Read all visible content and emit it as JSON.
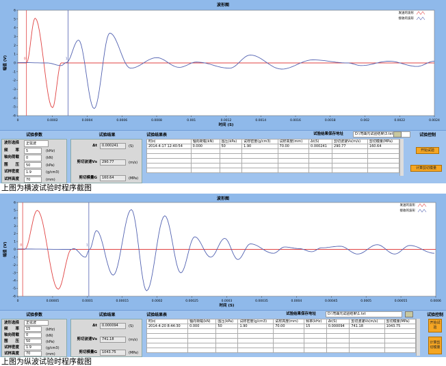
{
  "captions": [
    "上图为横波试验时程序截图",
    "上图为纵波试验时程序截图"
  ],
  "colors": {
    "sent": "#e04040",
    "received": "#5060b0",
    "panel": "#9fc3ee",
    "button": "#f5a623"
  },
  "chart_data": [
    {
      "type": "line",
      "title": "波形图",
      "xlabel": "时间 (S)",
      "ylabel": "幅值 (V)",
      "xlim": [
        0,
        0.0024
      ],
      "ylim": [
        -6,
        6
      ],
      "xticks": [
        0,
        0.0002,
        0.0004,
        0.0006,
        0.0008,
        0.001,
        0.0012,
        0.0014,
        0.0016,
        0.0018,
        0.002,
        0.0022,
        0.0024
      ],
      "xtick_labels": [
        "0",
        "0.0002",
        "0.0004",
        "0.0006",
        "0.0008",
        "0.001",
        "0.0012",
        "0.0014",
        "0.0016",
        "0.0018",
        "0.002",
        "0.0022",
        "0.0024"
      ],
      "yticks": [
        -6,
        -5,
        -4,
        -3,
        -2,
        -1,
        0,
        1,
        2,
        3,
        4,
        5,
        6
      ],
      "legend": [
        "发送的波形",
        "接收的波形"
      ],
      "legend_position": "top-right",
      "grid": false,
      "cursors": [
        {
          "label": "0",
          "x": 5e-05,
          "color": "#e04040"
        },
        {
          "label": "1",
          "x": 0.00029,
          "color": "#5060b0"
        }
      ],
      "series": [
        {
          "name": "发送的波形",
          "points": [
            [
              0,
              0
            ],
            [
              5e-05,
              0
            ],
            [
              0.0001,
              5.1
            ],
            [
              0.0002,
              -5.1
            ],
            [
              0.00025,
              0
            ],
            [
              0.0024,
              0
            ]
          ]
        },
        {
          "name": "接收的波形",
          "points": [
            [
              0,
              0.05
            ],
            [
              0.00017,
              0
            ],
            [
              0.00025,
              -0.3
            ],
            [
              0.00028,
              0.05
            ],
            [
              0.00035,
              2.6
            ],
            [
              0.00044,
              -5.2
            ],
            [
              0.00053,
              3.4
            ],
            [
              0.00065,
              -0.6
            ],
            [
              0.0008,
              0.6
            ],
            [
              0.00093,
              -0.5
            ],
            [
              0.00103,
              0.1
            ],
            [
              0.00122,
              -0.6
            ],
            [
              0.00134,
              0.9
            ],
            [
              0.00152,
              -0.7
            ],
            [
              0.0017,
              0.35
            ],
            [
              0.0019,
              0
            ],
            [
              0.00198,
              -0.3
            ],
            [
              0.00214,
              0.2
            ],
            [
              0.0023,
              -0.4
            ],
            [
              0.0024,
              0.2
            ]
          ]
        }
      ]
    },
    {
      "type": "line",
      "title": "波形图",
      "xlabel": "时间 (S)",
      "ylabel": "幅值 (V)",
      "xlim": [
        0,
        0.0006
      ],
      "ylim": [
        -6,
        6
      ],
      "xticks": [
        0,
        5e-05,
        0.0001,
        0.00015,
        0.0002,
        0.00025,
        0.0003,
        0.00035,
        0.0004,
        0.00045,
        0.0005,
        0.00055,
        0.0006
      ],
      "xtick_labels": [
        "0",
        "0.00005",
        "0.0001",
        "0.00015",
        "0.0002",
        "0.00025",
        "0.0003",
        "0.00035",
        "0.0004",
        "0.00045",
        "0.0005",
        "0.00055",
        "0.0006"
      ],
      "yticks": [
        -6,
        -5,
        -4,
        -3,
        -2,
        -1,
        0,
        1,
        2,
        3,
        4,
        5,
        6
      ],
      "legend": [
        "发送的波形",
        "接收的波形"
      ],
      "legend_position": "top-right",
      "grid": false,
      "cursors": [
        {
          "label": "0",
          "x": 7e-06,
          "color": "#e04040"
        },
        {
          "label": "1",
          "x": 0.000102,
          "color": "#5060b0"
        }
      ],
      "series": [
        {
          "name": "发送的波形",
          "points": [
            [
              0,
              0
            ],
            [
              1e-05,
              0
            ],
            [
              2.8e-05,
              5.0
            ],
            [
              5.8e-05,
              -5.1
            ],
            [
              7.7e-05,
              0
            ],
            [
              0.0006,
              0
            ]
          ]
        },
        {
          "name": "接收的波形",
          "points": [
            [
              0,
              0.05
            ],
            [
              7.7e-05,
              0
            ],
            [
              8e-05,
              0.1
            ],
            [
              9.7e-05,
              -1
            ],
            [
              0.000103,
              0
            ],
            [
              0.000113,
              2.4
            ],
            [
              0.000137,
              -3.3
            ],
            [
              0.000163,
              5.1
            ],
            [
              0.000185,
              -5.3
            ],
            [
              0.000211,
              4.3
            ],
            [
              0.000234,
              -3
            ],
            [
              0.000254,
              1.6
            ],
            [
              0.000277,
              -1
            ],
            [
              0.000297,
              1.4
            ],
            [
              0.000316,
              -1.3
            ],
            [
              0.000334,
              0.7
            ],
            [
              0.000367,
              -0.5
            ],
            [
              0.000383,
              0.3
            ],
            [
              0.000404,
              0.1
            ],
            [
              0.000422,
              -0.3
            ],
            [
              0.000436,
              0.2
            ],
            [
              0.000463,
              0.4
            ],
            [
              0.000488,
              -0.6
            ],
            [
              0.000516,
              0.6
            ],
            [
              0.000541,
              -0.6
            ],
            [
              0.000563,
              0.5
            ],
            [
              0.000598,
              -0.5
            ]
          ]
        }
      ]
    }
  ],
  "panels": [
    {
      "params": {
        "title": "试验参数",
        "rows": [
          {
            "label": "波形选择",
            "value": "正弦波",
            "unit": ""
          },
          {
            "label": "频　　率",
            "value": "5",
            "unit": "(kHz)"
          },
          {
            "label": "轴向荷载",
            "value": "0",
            "unit": "(kN)"
          },
          {
            "label": "围　　压",
            "value": "50",
            "unit": "(kPa)"
          },
          {
            "label": "试样密度",
            "value": "1.9",
            "unit": "(g/cm3)"
          },
          {
            "label": "试样高度",
            "value": "70",
            "unit": "(mm)"
          }
        ]
      },
      "results": {
        "title": "试验结果",
        "rows": [
          {
            "label": "Δt",
            "value": "0.000241",
            "unit": "(S)"
          },
          {
            "label": "剪切波速Vs",
            "value": "290.77",
            "unit": "(m/s)"
          },
          {
            "label": "剪切模量G",
            "value": "160.64",
            "unit": "(MPa)"
          }
        ]
      },
      "table": {
        "title": "试验结果表",
        "save_label": "试验结果保存地址",
        "save_path": "D:\\弯曲元试验结果\\3.txt",
        "columns": [
          "时间",
          "轴向荷载(kN)",
          "围压(kPa)",
          "试样密度(g/cm3)",
          "试样高度(mm)",
          "Δt(S)",
          "剪切波速Vs(m/s)",
          "剪切模量(MPa)"
        ],
        "rows": [
          [
            "2014-4-17 12:40:54",
            "0.000",
            "50",
            "1.90",
            "70.00",
            "0.000241",
            "290.77",
            "160.64"
          ]
        ]
      },
      "control": {
        "title": "试验控制",
        "buttons": [
          "开始试验",
          "计算剪切模量"
        ]
      }
    },
    {
      "params": {
        "title": "试验参数",
        "rows": [
          {
            "label": "波形选择",
            "value": "正弦波",
            "unit": ""
          },
          {
            "label": "频　　率",
            "value": "15",
            "unit": "(kHz)"
          },
          {
            "label": "轴向荷载",
            "value": "0",
            "unit": "(kN)"
          },
          {
            "label": "围　　压",
            "value": "50",
            "unit": "(kPa)"
          },
          {
            "label": "试样密度",
            "value": "1.9",
            "unit": "(g/cm3)"
          },
          {
            "label": "试样高度",
            "value": "70",
            "unit": "(mm)"
          }
        ]
      },
      "results": {
        "title": "试验结果",
        "rows": [
          {
            "label": "Δt",
            "value": "0.000094",
            "unit": "(S)"
          },
          {
            "label": "剪切波速Vs",
            "value": "741.18",
            "unit": "(m/s)"
          },
          {
            "label": "剪切模量G",
            "value": "1043.75",
            "unit": "(MPa)"
          }
        ]
      },
      "table": {
        "title": "试验结果表",
        "save_label": "试验结果保存地址",
        "save_path": "D:\\弯曲元试验结果\\1.txt",
        "columns": [
          "时间",
          "轴向荷载(kN)",
          "围压(kPa)",
          "试样密度(g/cm3)",
          "试样高度(mm)",
          "频率(kHz)",
          "Δt(S)",
          "剪切波速Vs(m/s)",
          "剪切模量(MPa)"
        ],
        "rows": [
          [
            "2014-4-20 8:44:30",
            "0.000",
            "50",
            "1.90",
            "70.00",
            "15",
            "0.000094",
            "741.18",
            "1043.75"
          ]
        ]
      },
      "control": {
        "title": "试验控制",
        "buttons": [
          "开始试验",
          "计算剪切模量"
        ]
      }
    }
  ]
}
